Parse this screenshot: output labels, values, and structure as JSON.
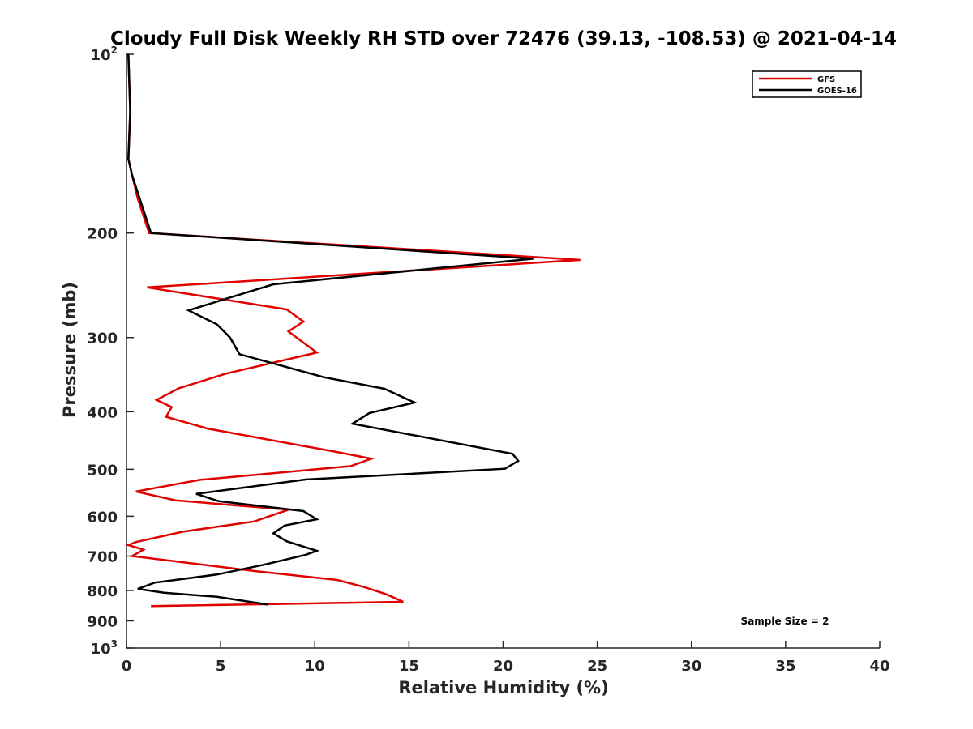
{
  "chart_data": {
    "type": "line",
    "title": "Cloudy Full Disk Weekly RH STD over 72476 (39.13, -108.53) @ 2021-04-14",
    "xlabel": "Relative Humidity (%)",
    "ylabel": "Pressure (mb)",
    "xlim": [
      0,
      40
    ],
    "ylim": [
      100,
      1000
    ],
    "y_scale": "log",
    "y_reversed": true,
    "grid": false,
    "legend_position": "top-right",
    "x_ticks": [
      "0",
      "5",
      "10",
      "15",
      "20",
      "25",
      "30",
      "35",
      "40"
    ],
    "y_ticks": [
      {
        "value": 100,
        "base": "10",
        "exp": "2"
      },
      {
        "value": 200,
        "label": "200"
      },
      {
        "value": 300,
        "label": "300"
      },
      {
        "value": 400,
        "label": "400"
      },
      {
        "value": 500,
        "label": "500"
      },
      {
        "value": 600,
        "label": "600"
      },
      {
        "value": 700,
        "label": "700"
      },
      {
        "value": 800,
        "label": "800"
      },
      {
        "value": 900,
        "label": "900"
      },
      {
        "value": 1000,
        "base": "10",
        "exp": "3"
      }
    ],
    "series": [
      {
        "name": "GFS",
        "color": "#e00000",
        "points": [
          [
            0.1,
            100
          ],
          [
            0.2,
            125
          ],
          [
            0.1,
            150
          ],
          [
            0.3,
            160
          ],
          [
            0.6,
            175
          ],
          [
            1.2,
            200
          ],
          [
            24.1,
            222
          ],
          [
            1.1,
            247
          ],
          [
            8.5,
            269
          ],
          [
            9.4,
            282
          ],
          [
            8.6,
            293
          ],
          [
            10.1,
            318
          ],
          [
            5.3,
            345
          ],
          [
            2.8,
            365
          ],
          [
            1.6,
            382
          ],
          [
            2.4,
            393
          ],
          [
            2.1,
            408
          ],
          [
            4.3,
            427
          ],
          [
            10.9,
            466
          ],
          [
            13.0,
            480
          ],
          [
            11.9,
            494
          ],
          [
            3.9,
            521
          ],
          [
            0.5,
            545
          ],
          [
            2.6,
            564
          ],
          [
            8.6,
            585
          ],
          [
            6.8,
            612
          ],
          [
            3.0,
            637
          ],
          [
            0.5,
            663
          ],
          [
            0.1,
            671
          ],
          [
            0.9,
            683
          ],
          [
            0.3,
            700
          ],
          [
            6.8,
            742
          ],
          [
            11.2,
            768
          ],
          [
            12.6,
            789
          ],
          [
            13.8,
            812
          ],
          [
            14.7,
            836
          ],
          [
            1.3,
            850
          ]
        ]
      },
      {
        "name": "GOES-16",
        "color": "#000000",
        "points": [
          [
            0.1,
            100
          ],
          [
            0.2,
            125
          ],
          [
            0.1,
            150
          ],
          [
            0.3,
            160
          ],
          [
            0.7,
            175
          ],
          [
            1.3,
            200
          ],
          [
            21.6,
            221
          ],
          [
            7.8,
            244
          ],
          [
            5.3,
            258
          ],
          [
            3.3,
            270
          ],
          [
            4.8,
            285
          ],
          [
            5.5,
            300
          ],
          [
            6.0,
            320
          ],
          [
            10.5,
            350
          ],
          [
            13.7,
            366
          ],
          [
            15.3,
            386
          ],
          [
            12.9,
            402
          ],
          [
            12.0,
            419
          ],
          [
            20.5,
            471
          ],
          [
            20.8,
            484
          ],
          [
            20.1,
            499
          ],
          [
            9.6,
            520
          ],
          [
            3.7,
            550
          ],
          [
            4.9,
            566
          ],
          [
            9.4,
            588
          ],
          [
            10.1,
            607
          ],
          [
            8.4,
            622
          ],
          [
            7.8,
            641
          ],
          [
            8.5,
            661
          ],
          [
            10.1,
            686
          ],
          [
            9.5,
            697
          ],
          [
            7.3,
            724
          ],
          [
            4.8,
            752
          ],
          [
            1.5,
            776
          ],
          [
            0.6,
            795
          ],
          [
            2.0,
            807
          ],
          [
            4.8,
            820
          ],
          [
            7.5,
            845
          ]
        ]
      }
    ],
    "annotation": "Sample Size = 2"
  }
}
